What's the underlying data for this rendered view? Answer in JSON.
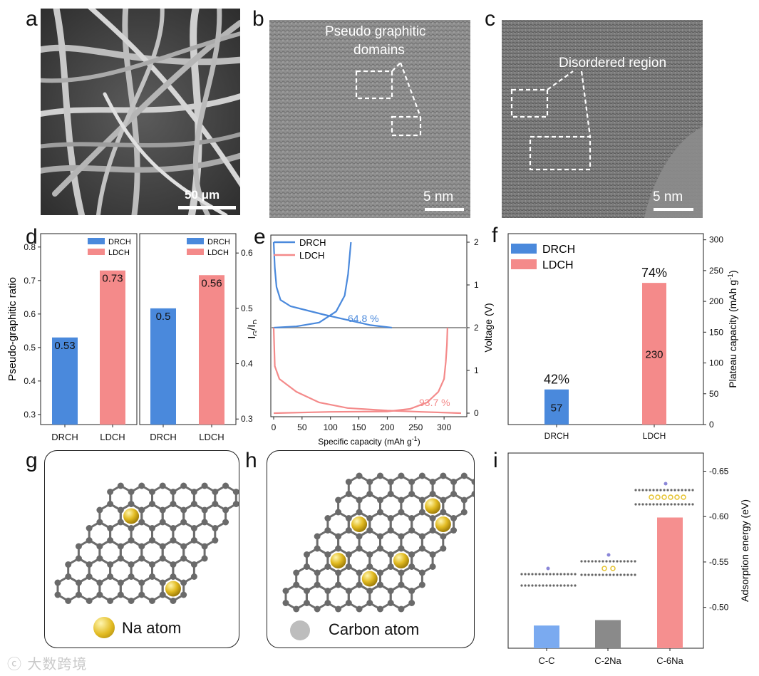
{
  "letters": {
    "a": "a",
    "b": "b",
    "c": "c",
    "d": "d",
    "e": "e",
    "f": "f",
    "g": "g",
    "h": "h",
    "i": "i"
  },
  "panel_a": {
    "scale_label": "50 μm"
  },
  "panel_b": {
    "annotation_line1": "Pseudo graphitic",
    "annotation_line2": "domains",
    "scale_label": "5 nm"
  },
  "panel_c": {
    "annotation": "Disordered region",
    "scale_label": "5 nm"
  },
  "colors": {
    "drch": "#4a89dc",
    "ldch": "#f48a8a",
    "cc": "#7aaaf0",
    "c2na": "#8a8a8a",
    "c6na": "#f58f8f",
    "na": "#e5c22d",
    "carbon": "#6a6a6a"
  },
  "chart_data": [
    {
      "id": "d-left",
      "type": "bar",
      "categories": [
        "DRCH",
        "LDCH"
      ],
      "values": [
        0.53,
        0.73
      ],
      "value_labels": [
        "0.53",
        "0.73"
      ],
      "ylabel": "Pseudo-graphitic ratio",
      "ylim": [
        0.27,
        0.84
      ],
      "yticks": [
        "0.3",
        "0.4",
        "0.5",
        "0.6",
        "0.7",
        "0.8"
      ],
      "legend": [
        "DRCH",
        "LDCH"
      ],
      "legend_position": "top-right"
    },
    {
      "id": "d-right",
      "type": "bar",
      "categories": [
        "DRCH",
        "LDCH"
      ],
      "values": [
        0.5,
        0.56
      ],
      "value_labels": [
        "0.5",
        "0.56"
      ],
      "ylabel_main": "I",
      "ylabel_sub1": "G",
      "ylabel_mid": "/I",
      "ylabel_sub2": "D",
      "ylim": [
        0.29,
        0.635
      ],
      "yticks": [
        "0.3",
        "0.4",
        "0.5",
        "0.6"
      ],
      "legend": [
        "DRCH",
        "LDCH"
      ],
      "legend_position": "top-right"
    },
    {
      "id": "e",
      "type": "line",
      "xlabel": "Specific capacity (mAh g",
      "xlabel_sup": "-1",
      "xlabel_end": ")",
      "ylabel": "Voltage (V)",
      "xticks": [
        "0",
        "50",
        "100",
        "150",
        "200",
        "250",
        "300"
      ],
      "yticks_upper": [
        "0",
        "1",
        "2"
      ],
      "yticks_lower": [
        "0",
        "1",
        "2"
      ],
      "series": [
        {
          "name": "DRCH",
          "efficiency_label": "64.8 %",
          "discharge": [
            [
              0,
              2.0
            ],
            [
              2,
              1.4
            ],
            [
              5,
              0.95
            ],
            [
              12,
              0.65
            ],
            [
              30,
              0.5
            ],
            [
              60,
              0.4
            ],
            [
              90,
              0.3
            ],
            [
              130,
              0.18
            ],
            [
              170,
              0.06
            ],
            [
              208,
              0.0
            ]
          ],
          "charge": [
            [
              0,
              0.0
            ],
            [
              40,
              0.03
            ],
            [
              80,
              0.12
            ],
            [
              110,
              0.38
            ],
            [
              125,
              0.75
            ],
            [
              131,
              1.25
            ],
            [
              134,
              1.7
            ],
            [
              136,
              2.0
            ]
          ]
        },
        {
          "name": "LDCH",
          "efficiency_label": "93.7 %",
          "discharge": [
            [
              0,
              2.0
            ],
            [
              2,
              1.1
            ],
            [
              10,
              0.8
            ],
            [
              40,
              0.5
            ],
            [
              80,
              0.25
            ],
            [
              130,
              0.12
            ],
            [
              200,
              0.06
            ],
            [
              260,
              0.03
            ],
            [
              330,
              0.0
            ]
          ],
          "charge": [
            [
              0,
              0.0
            ],
            [
              100,
              0.03
            ],
            [
              200,
              0.04
            ],
            [
              240,
              0.1
            ],
            [
              270,
              0.25
            ],
            [
              290,
              0.5
            ],
            [
              300,
              0.8
            ],
            [
              303,
              1.2
            ],
            [
              305,
              1.6
            ],
            [
              306,
              2.0
            ]
          ]
        }
      ],
      "legend_position": "top-left"
    },
    {
      "id": "f",
      "type": "bar",
      "categories": [
        "DRCH",
        "LDCH"
      ],
      "values": [
        57,
        230
      ],
      "value_labels": [
        "57",
        "230"
      ],
      "percent_labels": [
        "42%",
        "74%"
      ],
      "ylabel": "Plateau capacity (mAh g",
      "ylabel_sup": "-1",
      "ylabel_end": ")",
      "ylim": [
        0,
        310
      ],
      "yticks": [
        "0",
        "50",
        "100",
        "150",
        "200",
        "250",
        "300"
      ],
      "legend": [
        "DRCH",
        "LDCH"
      ],
      "legend_position": "top-left"
    },
    {
      "id": "i",
      "type": "bar",
      "categories": [
        "C-C",
        "C-2Na",
        "C-6Na"
      ],
      "values": [
        -0.48,
        -0.486,
        -0.599
      ],
      "ylabel": "Adsorption energy (eV)",
      "ylim": [
        -0.455,
        -0.67
      ],
      "yticks": [
        "-0.50",
        "-0.55",
        "-0.60",
        "-0.65"
      ]
    }
  ],
  "panel_g": {
    "legend_label": "Na atom"
  },
  "panel_h": {
    "legend_label": "Carbon atom"
  },
  "watermark": "大数跨境"
}
